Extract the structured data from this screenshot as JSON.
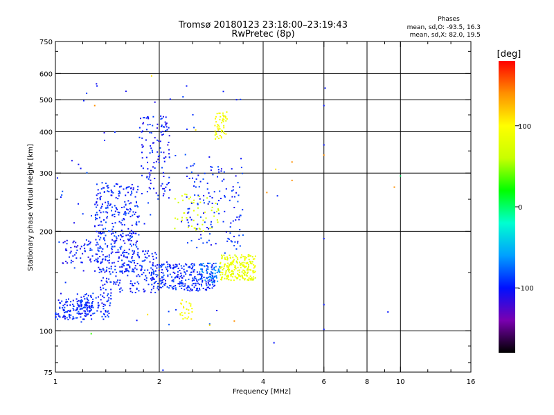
{
  "chart_data": {
    "type": "scatter",
    "title": "Tromsø 20180123 23:18:00–23:19:43",
    "subtitle": "RwPretec (8p)",
    "xlabel": "Frequency [MHz]",
    "ylabel": "Stationary phase Virtual Height [km]",
    "x_scale": "log",
    "y_scale": "log",
    "xlim": [
      1,
      16
    ],
    "ylim": [
      75,
      750
    ],
    "x_ticks": [
      1,
      2,
      4,
      6,
      8,
      10,
      16
    ],
    "x_minor_ticks": [
      1.2,
      1.4,
      1.6,
      1.8,
      2.5,
      3,
      3.5,
      5,
      7,
      9,
      12,
      14
    ],
    "y_ticks": [
      75,
      100,
      200,
      300,
      400,
      500,
      600,
      750
    ],
    "y_minor_ticks": [
      80,
      90,
      150,
      250,
      350,
      450,
      700
    ],
    "x_gridlines": [
      2,
      4,
      6,
      8,
      10
    ],
    "y_gridlines": [
      100,
      200,
      300,
      400,
      500,
      600
    ],
    "grid": true,
    "stats": {
      "heading": "Phases",
      "line1": "mean, sd,O: -93.5, 16.3",
      "line2": "mean, sd,X:  82.0, 19.5"
    },
    "colorbar": {
      "label": "[deg]",
      "range": [
        -180,
        180
      ],
      "ticks": [
        100,
        0,
        -100
      ],
      "colormap": [
        "#000000",
        "#7a00b0",
        "#0010ff",
        "#00a0ff",
        "#00ffd0",
        "#00ff00",
        "#c8ff00",
        "#ffff00",
        "#ff9000",
        "#ff0000"
      ]
    },
    "clusters": [
      {
        "x_range": [
          1.0,
          1.28
        ],
        "y_range": [
          108,
          125
        ],
        "count": 130,
        "phase": -95
      },
      {
        "x_range": [
          1.15,
          1.45
        ],
        "y_range": [
          110,
          130
        ],
        "count": 80,
        "phase": -95
      },
      {
        "x_range": [
          1.05,
          1.35
        ],
        "y_range": [
          160,
          190
        ],
        "count": 60,
        "phase": -100
      },
      {
        "x_range": [
          1.3,
          1.75
        ],
        "y_range": [
          150,
          280
        ],
        "count": 320,
        "phase": -95
      },
      {
        "x_range": [
          1.35,
          2.0
        ],
        "y_range": [
          130,
          175
        ],
        "count": 160,
        "phase": -98
      },
      {
        "x_range": [
          1.75,
          2.15
        ],
        "y_range": [
          250,
          450
        ],
        "count": 120,
        "phase": -100
      },
      {
        "x_range": [
          1.9,
          2.9
        ],
        "y_range": [
          132,
          160
        ],
        "count": 260,
        "phase": -95
      },
      {
        "x_range": [
          2.6,
          3.0
        ],
        "y_range": [
          140,
          160
        ],
        "count": 60,
        "phase": -70
      },
      {
        "x_range": [
          3.0,
          3.8
        ],
        "y_range": [
          142,
          170
        ],
        "count": 220,
        "phase": 85
      },
      {
        "x_range": [
          2.9,
          3.15
        ],
        "y_range": [
          380,
          460
        ],
        "count": 50,
        "phase": 95
      },
      {
        "x_range": [
          2.2,
          3.0
        ],
        "y_range": [
          200,
          260
        ],
        "count": 50,
        "phase": 75
      },
      {
        "x_range": [
          2.4,
          3.5
        ],
        "y_range": [
          180,
          320
        ],
        "count": 120,
        "phase": -95
      },
      {
        "x_range": [
          2.3,
          2.5
        ],
        "y_range": [
          108,
          125
        ],
        "count": 25,
        "phase": 95
      },
      {
        "x_range": [
          1.0,
          3.5
        ],
        "y_range": [
          100,
          600
        ],
        "count": 90,
        "phase": -95
      }
    ],
    "points": [
      {
        "x": 1.32,
        "y": 550,
        "phase": -100
      },
      {
        "x": 1.9,
        "y": 590,
        "phase": 110
      },
      {
        "x": 2.4,
        "y": 550,
        "phase": -100
      },
      {
        "x": 3.35,
        "y": 500,
        "phase": -100
      },
      {
        "x": 1.3,
        "y": 480,
        "phase": 140
      },
      {
        "x": 2.55,
        "y": 405,
        "phase": 110
      },
      {
        "x": 4.1,
        "y": 262,
        "phase": 140
      },
      {
        "x": 4.4,
        "y": 256,
        "phase": -95
      },
      {
        "x": 4.85,
        "y": 324,
        "phase": 140
      },
      {
        "x": 4.85,
        "y": 285,
        "phase": 140
      },
      {
        "x": 4.35,
        "y": 308,
        "phase": 110
      },
      {
        "x": 3.3,
        "y": 107,
        "phase": 140
      },
      {
        "x": 2.8,
        "y": 104,
        "phase": 110
      },
      {
        "x": 1.85,
        "y": 112,
        "phase": 110
      },
      {
        "x": 1.27,
        "y": 98,
        "phase": 30
      },
      {
        "x": 2.05,
        "y": 76,
        "phase": -95
      },
      {
        "x": 4.3,
        "y": 92,
        "phase": -100
      },
      {
        "x": 6.0,
        "y": 480,
        "phase": -100
      },
      {
        "x": 6.05,
        "y": 542,
        "phase": -100
      },
      {
        "x": 6.0,
        "y": 365,
        "phase": -100
      },
      {
        "x": 6.0,
        "y": 340,
        "phase": 140
      },
      {
        "x": 6.0,
        "y": 120,
        "phase": -100
      },
      {
        "x": 6.0,
        "y": 101,
        "phase": -100
      },
      {
        "x": 6.0,
        "y": 190,
        "phase": -100
      },
      {
        "x": 9.6,
        "y": 272,
        "phase": 140
      },
      {
        "x": 10.0,
        "y": 294,
        "phase": 0
      },
      {
        "x": 9.2,
        "y": 114,
        "phase": -100
      }
    ]
  }
}
